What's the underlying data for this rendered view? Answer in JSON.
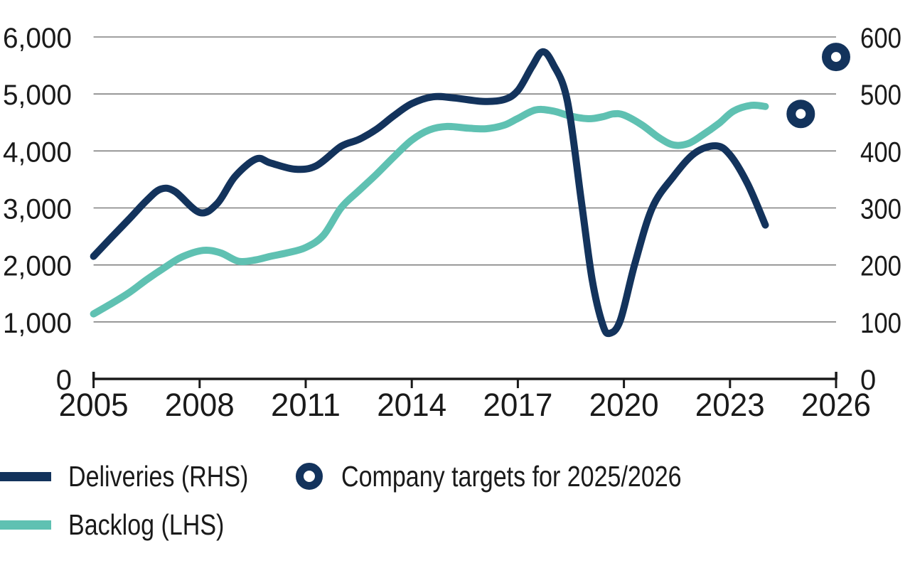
{
  "colors": {
    "navy": "#13335C",
    "teal": "#5FC1B2",
    "grid": "#808080",
    "axis": "#1a1a1a",
    "text": "#1a1a1a",
    "background": "#ffffff"
  },
  "chart_data": {
    "type": "line",
    "title": "",
    "grid": "horizontal-only",
    "legend_position": "below-chart-left",
    "x_axis": {
      "min": 2005,
      "max": 2026,
      "tick_years": [
        2005,
        2008,
        2011,
        2014,
        2017,
        2020,
        2023,
        2026
      ],
      "tick_labels": [
        "2005",
        "2008",
        "2011",
        "2014",
        "2017",
        "2020",
        "2023",
        "2026"
      ]
    },
    "y_axis_left": {
      "min": 0,
      "max": 6000,
      "tick_values": [
        6000,
        5000,
        4000,
        3000,
        2000,
        1000,
        0
      ],
      "tick_labels": [
        "6,000",
        "5,000",
        "4,000",
        "3,000",
        "2,000",
        "1,000",
        "0"
      ],
      "used_by": "Backlog (LHS)"
    },
    "y_axis_right": {
      "min": 0,
      "max": 600,
      "tick_values": [
        600,
        500,
        400,
        300,
        200,
        100,
        0
      ],
      "tick_labels": [
        "600",
        "500",
        "400",
        "300",
        "200",
        "100",
        "0"
      ],
      "used_by": "Deliveries (RHS)"
    },
    "series": [
      {
        "name": "Backlog (LHS)",
        "axis": "left",
        "style": "line",
        "color": "#5FC1B2",
        "points": [
          [
            2005.0,
            1140
          ],
          [
            2005.5,
            1320
          ],
          [
            2006.0,
            1510
          ],
          [
            2006.5,
            1740
          ],
          [
            2007.0,
            1950
          ],
          [
            2007.5,
            2140
          ],
          [
            2008.1,
            2255
          ],
          [
            2008.6,
            2210
          ],
          [
            2009.1,
            2065
          ],
          [
            2009.6,
            2090
          ],
          [
            2010.0,
            2150
          ],
          [
            2010.5,
            2215
          ],
          [
            2011.0,
            2305
          ],
          [
            2011.5,
            2520
          ],
          [
            2012.0,
            3000
          ],
          [
            2012.5,
            3300
          ],
          [
            2013.0,
            3590
          ],
          [
            2013.5,
            3900
          ],
          [
            2014.0,
            4190
          ],
          [
            2014.5,
            4370
          ],
          [
            2015.0,
            4430
          ],
          [
            2015.6,
            4400
          ],
          [
            2016.1,
            4390
          ],
          [
            2016.6,
            4450
          ],
          [
            2017.0,
            4570
          ],
          [
            2017.5,
            4720
          ],
          [
            2018.0,
            4700
          ],
          [
            2018.5,
            4610
          ],
          [
            2019.0,
            4565
          ],
          [
            2019.4,
            4600
          ],
          [
            2019.7,
            4650
          ],
          [
            2020.0,
            4630
          ],
          [
            2020.5,
            4460
          ],
          [
            2021.0,
            4230
          ],
          [
            2021.4,
            4105
          ],
          [
            2021.8,
            4125
          ],
          [
            2022.2,
            4270
          ],
          [
            2022.7,
            4490
          ],
          [
            2023.1,
            4700
          ],
          [
            2023.6,
            4800
          ],
          [
            2024.0,
            4780
          ]
        ]
      },
      {
        "name": "Deliveries (RHS)",
        "axis": "right",
        "style": "line",
        "color": "#13335C",
        "points": [
          [
            2005.0,
            215
          ],
          [
            2005.5,
            248
          ],
          [
            2006.0,
            280
          ],
          [
            2006.5,
            313
          ],
          [
            2006.9,
            333
          ],
          [
            2007.3,
            329
          ],
          [
            2008.0,
            292
          ],
          [
            2008.5,
            308
          ],
          [
            2009.0,
            355
          ],
          [
            2009.6,
            386
          ],
          [
            2010.0,
            379
          ],
          [
            2010.7,
            368
          ],
          [
            2011.3,
            374
          ],
          [
            2012.0,
            408
          ],
          [
            2012.5,
            420
          ],
          [
            2013.0,
            438
          ],
          [
            2013.5,
            462
          ],
          [
            2014.0,
            483
          ],
          [
            2014.6,
            495
          ],
          [
            2015.2,
            493
          ],
          [
            2016.0,
            487
          ],
          [
            2016.6,
            490
          ],
          [
            2017.0,
            506
          ],
          [
            2017.4,
            548
          ],
          [
            2017.7,
            574
          ],
          [
            2018.0,
            552
          ],
          [
            2018.4,
            488
          ],
          [
            2018.8,
            310
          ],
          [
            2019.1,
            175
          ],
          [
            2019.4,
            95
          ],
          [
            2019.6,
            80
          ],
          [
            2019.9,
            103
          ],
          [
            2020.3,
            200
          ],
          [
            2020.8,
            300
          ],
          [
            2021.4,
            355
          ],
          [
            2022.0,
            396
          ],
          [
            2022.6,
            409
          ],
          [
            2023.0,
            393
          ],
          [
            2023.5,
            342
          ],
          [
            2024.0,
            270
          ]
        ]
      },
      {
        "name": "Company targets for 2025/2026",
        "axis": "right",
        "style": "ring-markers",
        "color": "#13335C",
        "points": [
          [
            2025.0,
            465
          ],
          [
            2026.0,
            565
          ]
        ]
      }
    ]
  },
  "legend": {
    "items": [
      {
        "label": "Deliveries (RHS)",
        "swatch": "line",
        "color": "#13335C"
      },
      {
        "label": "Backlog (LHS)",
        "swatch": "line",
        "color": "#5FC1B2"
      },
      {
        "label": "Company targets for 2025/2026",
        "swatch": "ring",
        "color": "#13335C"
      }
    ]
  }
}
